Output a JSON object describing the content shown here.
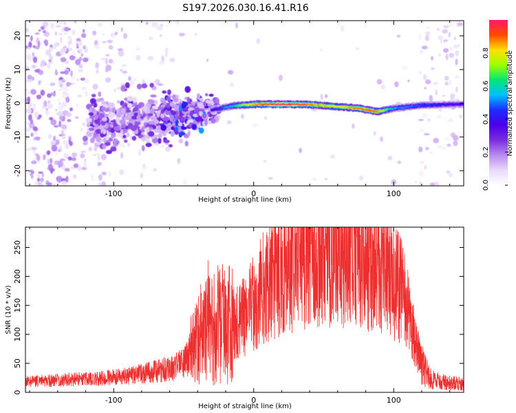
{
  "title": "S197.2026.030.16.41.R16",
  "colors": {
    "line": "#ee2f2f",
    "axis": "#000000",
    "colormap": [
      "#ffffff",
      "#e7d9fa",
      "#b98af0",
      "#7a2ddd",
      "#4a00e8",
      "#1d2cff",
      "#00bfff",
      "#00e676",
      "#9cff00",
      "#ffe000",
      "#ff4a00",
      "#ff1a66"
    ]
  },
  "chart_data": [
    {
      "type": "heatmap",
      "name": "spectrogram",
      "xlabel": "Height of straight line (km)",
      "ylabel": "Frequency (Hz)",
      "xlim": [
        -163,
        150
      ],
      "ylim": [
        -24.5,
        24.5
      ],
      "xticks": [
        -100,
        0,
        100
      ],
      "yticks": [
        -20,
        -10,
        0,
        10,
        20
      ],
      "grid": false,
      "colorbar": {
        "label": "Normalized spectral amplitude",
        "range": [
          0,
          1
        ],
        "ticks": [
          "0.0",
          "0.2",
          "0.4",
          "0.6",
          "0.8"
        ]
      },
      "ridge": [
        {
          "height_km": -100,
          "freq_hz": -5.5,
          "amplitude": 0.15
        },
        {
          "height_km": -75,
          "freq_hz": -4.5,
          "amplitude": 0.2
        },
        {
          "height_km": -50,
          "freq_hz": -4.0,
          "amplitude": 0.3
        },
        {
          "height_km": -30,
          "freq_hz": -2.0,
          "amplitude": 0.35
        },
        {
          "height_km": -15,
          "freq_hz": -0.8,
          "amplitude": 0.55
        },
        {
          "height_km": 0,
          "freq_hz": -0.3,
          "amplitude": 0.8
        },
        {
          "height_km": 20,
          "freq_hz": -0.3,
          "amplitude": 0.95
        },
        {
          "height_km": 40,
          "freq_hz": -0.4,
          "amplitude": 0.85
        },
        {
          "height_km": 60,
          "freq_hz": -1.0,
          "amplitude": 0.75
        },
        {
          "height_km": 75,
          "freq_hz": -1.5,
          "amplitude": 0.85
        },
        {
          "height_km": 88,
          "freq_hz": -2.5,
          "amplitude": 0.85
        },
        {
          "height_km": 100,
          "freq_hz": -1.5,
          "amplitude": 0.5
        },
        {
          "height_km": 120,
          "freq_hz": -0.6,
          "amplitude": 0.45
        },
        {
          "height_km": 145,
          "freq_hz": -0.3,
          "amplitude": 0.35
        }
      ]
    },
    {
      "type": "line",
      "name": "snr",
      "xlabel": "Height of straight line (km)",
      "ylabel": "SNR (10 * v/v)",
      "xlim": [
        -163,
        150
      ],
      "ylim": [
        0,
        285
      ],
      "xticks": [
        -100,
        0,
        100
      ],
      "yticks": [
        0,
        50,
        100,
        150,
        200,
        250
      ],
      "grid": false,
      "series": [
        {
          "name": "SNR",
          "x": [
            -163,
            -150,
            -130,
            -110,
            -90,
            -75,
            -60,
            -50,
            -45,
            -40,
            -35,
            -30,
            -25,
            -20,
            -10,
            0,
            10,
            20,
            30,
            40,
            50,
            60,
            70,
            80,
            90,
            95,
            100,
            105,
            110,
            115,
            120,
            125,
            130,
            140,
            150
          ],
          "y": [
            18,
            20,
            22,
            24,
            28,
            34,
            40,
            50,
            70,
            90,
            100,
            110,
            120,
            115,
            120,
            155,
            190,
            215,
            230,
            238,
            240,
            240,
            238,
            232,
            225,
            215,
            200,
            175,
            140,
            95,
            50,
            28,
            20,
            16,
            15
          ]
        }
      ]
    }
  ]
}
